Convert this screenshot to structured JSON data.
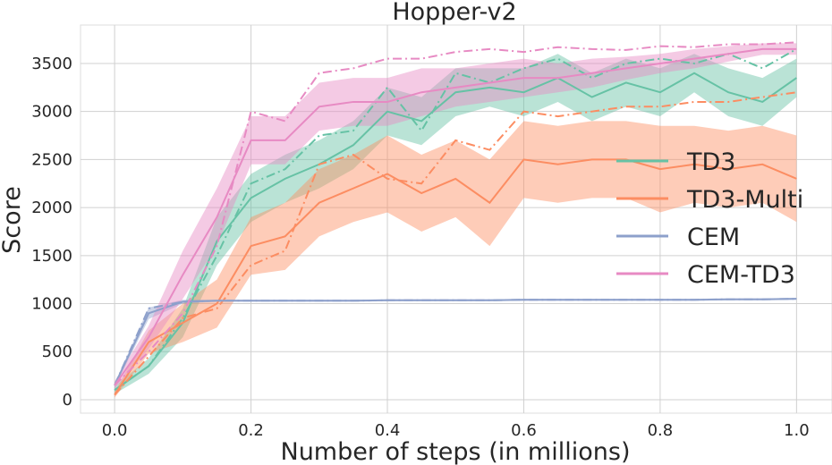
{
  "chart_data": {
    "type": "line",
    "title": "Hopper-v2",
    "xlabel": "Number of steps (in millions)",
    "ylabel": "Score",
    "xlim": [
      -0.05,
      1.052
    ],
    "ylim": [
      -140,
      3900
    ],
    "xticks": [
      0.0,
      0.2,
      0.4,
      0.6,
      0.8,
      1.0
    ],
    "xtick_labels": [
      "0.0",
      "0.2",
      "0.4",
      "0.6",
      "0.8",
      "1.0"
    ],
    "yticks": [
      0,
      500,
      1000,
      1500,
      2000,
      2500,
      3000,
      3500
    ],
    "ytick_labels": [
      "0",
      "500",
      "1000",
      "1500",
      "2000",
      "2500",
      "3000",
      "3500"
    ],
    "grid": true,
    "legend_position": "center-right",
    "x": [
      0,
      0.05,
      0.1,
      0.15,
      0.2,
      0.25,
      0.3,
      0.35,
      0.4,
      0.45,
      0.5,
      0.55,
      0.6,
      0.65,
      0.7,
      0.75,
      0.8,
      0.85,
      0.9,
      0.95,
      1.0
    ],
    "series": [
      {
        "name": "TD3",
        "color": "#66c2a5",
        "mean": [
          100,
          350,
          800,
          1650,
          2100,
          2300,
          2450,
          2650,
          3000,
          2900,
          3200,
          3250,
          3200,
          3350,
          3150,
          3300,
          3200,
          3400,
          3200,
          3100,
          3350
        ],
        "spread": [
          40,
          80,
          150,
          250,
          250,
          250,
          250,
          250,
          250,
          250,
          250,
          200,
          250,
          250,
          250,
          250,
          250,
          200,
          250,
          250,
          200
        ],
        "max": [
          100,
          350,
          850,
          1500,
          2250,
          2400,
          2750,
          2800,
          3250,
          2800,
          3400,
          3300,
          3450,
          3550,
          3350,
          3500,
          3550,
          3500,
          3600,
          3450,
          3650
        ]
      },
      {
        "name": "TD3-Multi",
        "color": "#fc8d62",
        "mean": [
          50,
          600,
          800,
          1000,
          1600,
          1700,
          2050,
          2200,
          2350,
          2150,
          2300,
          2050,
          2500,
          2450,
          2500,
          2500,
          2400,
          2450,
          2400,
          2450,
          2300
        ],
        "spread": [
          30,
          120,
          200,
          250,
          300,
          350,
          350,
          350,
          400,
          400,
          400,
          450,
          400,
          400,
          400,
          400,
          450,
          400,
          400,
          400,
          450
        ],
        "max": [
          50,
          450,
          850,
          950,
          1400,
          1550,
          2450,
          2550,
          2300,
          2250,
          2700,
          2600,
          3000,
          2950,
          3000,
          3050,
          3050,
          3100,
          3100,
          3150,
          3200
        ]
      },
      {
        "name": "CEM",
        "color": "#8da0cb",
        "mean": [
          150,
          900,
          1020,
          1030,
          1030,
          1030,
          1030,
          1030,
          1035,
          1035,
          1035,
          1035,
          1040,
          1040,
          1040,
          1040,
          1040,
          1040,
          1045,
          1045,
          1050
        ],
        "spread": [
          20,
          60,
          20,
          10,
          10,
          10,
          10,
          10,
          10,
          10,
          10,
          10,
          10,
          10,
          10,
          10,
          10,
          10,
          10,
          10,
          10
        ],
        "max": [
          150,
          950,
          1020,
          1030,
          1030,
          1030,
          1030,
          1030,
          1035,
          1035,
          1035,
          1035,
          1040,
          1040,
          1040,
          1040,
          1040,
          1040,
          1045,
          1045,
          1050
        ]
      },
      {
        "name": "CEM-TD3",
        "color": "#e78ac3",
        "mean": [
          150,
          650,
          1300,
          1900,
          2700,
          2700,
          3050,
          3100,
          3100,
          3200,
          3250,
          3300,
          3350,
          3350,
          3400,
          3450,
          3500,
          3550,
          3600,
          3650,
          3650
        ],
        "spread": [
          40,
          120,
          250,
          300,
          250,
          250,
          250,
          250,
          250,
          250,
          200,
          200,
          200,
          150,
          150,
          120,
          100,
          100,
          80,
          60,
          60
        ],
        "max": [
          150,
          500,
          900,
          1600,
          3000,
          2900,
          3400,
          3450,
          3550,
          3550,
          3620,
          3650,
          3620,
          3670,
          3650,
          3640,
          3680,
          3670,
          3700,
          3700,
          3720
        ]
      }
    ]
  }
}
